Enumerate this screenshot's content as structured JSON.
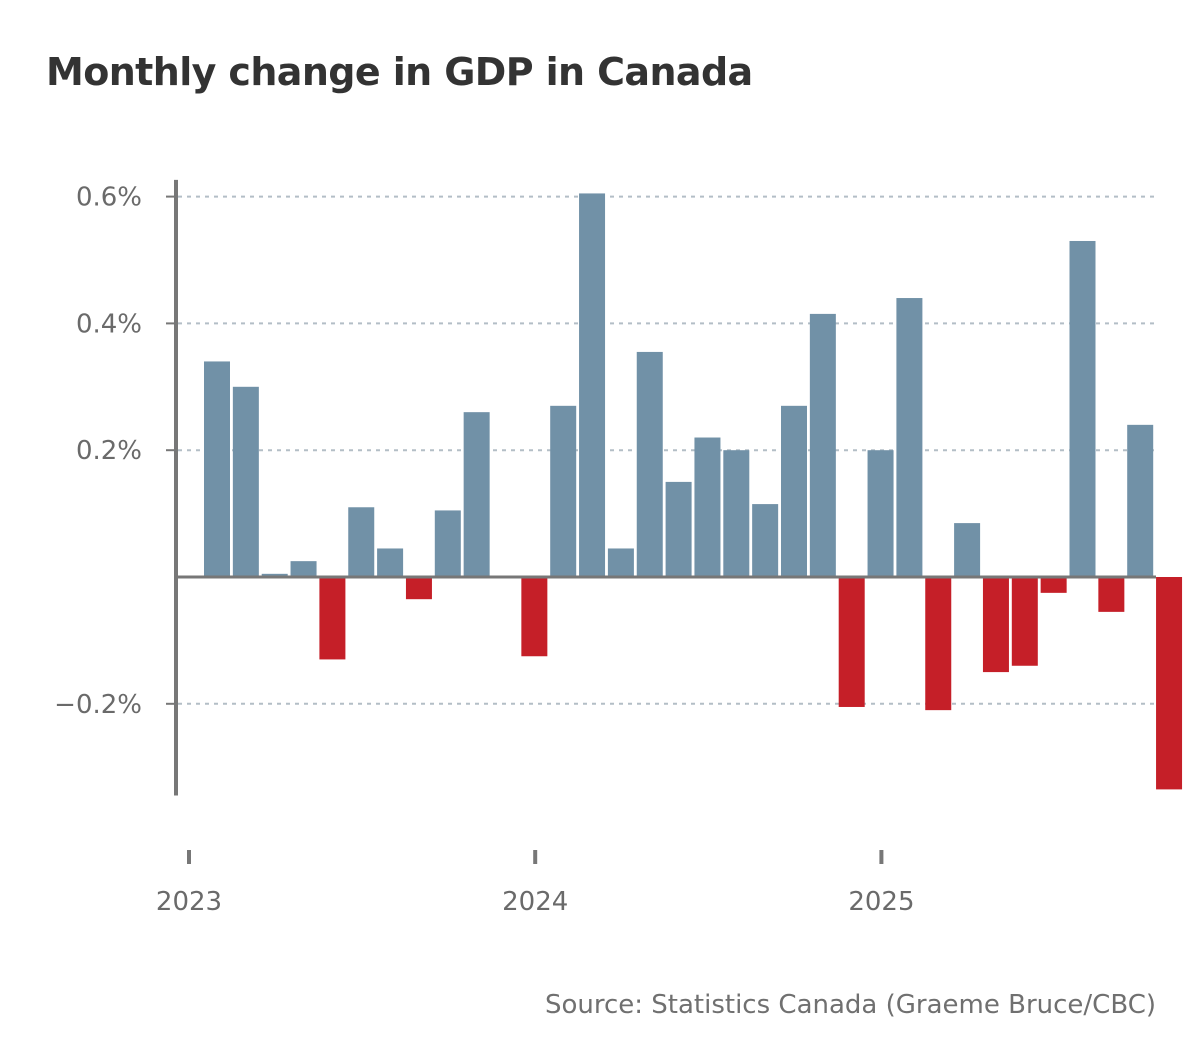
{
  "chart_data": {
    "type": "bar",
    "title": "Monthly change in GDP in Canada",
    "source": "Source: Statistics Canada (Graeme Bruce/CBC)",
    "x": [
      "2023-01",
      "2023-02",
      "2023-03",
      "2023-04",
      "2023-05",
      "2023-06",
      "2023-07",
      "2023-08",
      "2023-09",
      "2023-10",
      "2023-11",
      "2023-12",
      "2024-01",
      "2024-02",
      "2024-03",
      "2024-04",
      "2024-05",
      "2024-06",
      "2024-07",
      "2024-08",
      "2024-09",
      "2024-10",
      "2024-11",
      "2024-12",
      "2025-01",
      "2025-02",
      "2025-03",
      "2025-04",
      "2025-05",
      "2025-06",
      "2025-07",
      "2025-08",
      "2025-09",
      "2025-10"
    ],
    "values": [
      0.34,
      0.3,
      0.005,
      0.025,
      -0.13,
      0.11,
      0.045,
      -0.035,
      0.105,
      0.26,
      0.0,
      -0.125,
      0.27,
      0.605,
      0.045,
      0.355,
      0.15,
      0.22,
      0.2,
      0.115,
      0.27,
      0.415,
      -0.205,
      0.2,
      0.44,
      -0.21,
      0.085,
      -0.15,
      -0.14,
      -0.025,
      0.53,
      -0.055,
      0.24,
      -0.335
    ],
    "x_tick_labels": [
      "2023",
      "2024",
      "2025"
    ],
    "y_ticks": [
      -0.2,
      0.2,
      0.4,
      0.6
    ],
    "y_tick_labels": [
      "−0.2%",
      "0.2%",
      "0.4%",
      "0.6%"
    ],
    "ylim": [
      -0.34,
      0.62
    ],
    "grid": true,
    "colors": {
      "positive": "#7191a7",
      "negative": "#c51f28",
      "axis": "#777777",
      "grid": "#b3bec6"
    }
  }
}
